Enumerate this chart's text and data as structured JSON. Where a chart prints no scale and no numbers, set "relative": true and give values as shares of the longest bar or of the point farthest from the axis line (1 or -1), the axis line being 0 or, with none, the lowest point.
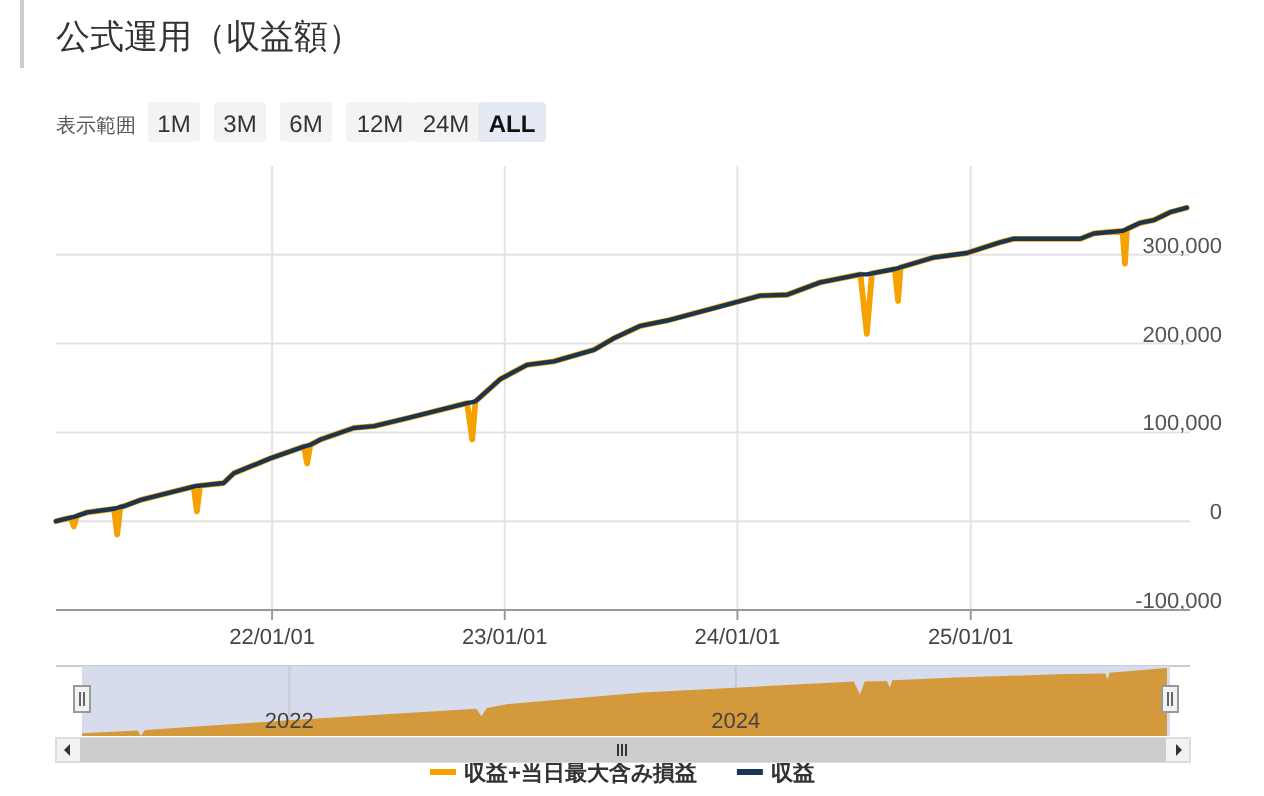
{
  "chart_data": [
    {
      "type": "line",
      "title": "公式運用（収益額）",
      "annotations": [
        "表示範囲",
        "1M",
        "3M",
        "6M",
        "12M",
        "24M",
        "ALL"
      ],
      "x": [
        "2021-01-27",
        "2021-02-19",
        "2021-02-24",
        "2021-03-01",
        "2021-03-17",
        "2021-04-28",
        "2021-05-03",
        "2021-05-08",
        "2021-05-14",
        "2021-06-09",
        "2021-08-31",
        "2021-09-05",
        "2021-09-10",
        "2021-10-17",
        "2021-11-02",
        "2021-12-30",
        "2022-02-20",
        "2022-02-25",
        "2022-03-02",
        "2022-03-18",
        "2022-05-09",
        "2022-06-10",
        "2022-08-01",
        "2022-11-03",
        "2022-11-11",
        "2022-11-16",
        "2022-12-25",
        "2023-02-05",
        "2023-03-19",
        "2023-05-21",
        "2023-06-21",
        "2023-08-02",
        "2023-09-13",
        "2023-12-26",
        "2024-02-06",
        "2024-03-19",
        "2024-05-10",
        "2024-07-12",
        "2024-07-22",
        "2024-07-30",
        "2024-09-04",
        "2024-09-09",
        "2024-09-13",
        "2024-11-04",
        "2024-12-26",
        "2025-02-16",
        "2025-03-09",
        "2025-06-22",
        "2025-07-13",
        "2025-08-27",
        "2025-08-31",
        "2025-09-03",
        "2025-09-24",
        "2025-10-15",
        "2025-11-10",
        "2025-12-06"
      ],
      "series": [
        {
          "name": "収益+当日最大含み損益",
          "color": "#f5a200",
          "values": [
            0,
            4000,
            -6000,
            6000,
            10000,
            14000,
            -15000,
            16000,
            17000,
            24000,
            39000,
            11000,
            40000,
            43000,
            54000,
            71000,
            84000,
            65000,
            86000,
            92000,
            105000,
            107000,
            116000,
            133000,
            92000,
            135000,
            160000,
            176000,
            180000,
            193000,
            206000,
            220000,
            226000,
            246000,
            254000,
            255000,
            269000,
            278000,
            211000,
            279000,
            284000,
            248000,
            286000,
            297000,
            302000,
            314000,
            318000,
            318000,
            324000,
            327000,
            290000,
            329000,
            336000,
            339000,
            348000,
            353000
          ]
        },
        {
          "name": "収益",
          "color": "#1a3550",
          "values": [
            0,
            4000,
            5000,
            6000,
            10000,
            14000,
            15000,
            16000,
            17000,
            24000,
            39000,
            40000,
            40000,
            43000,
            54000,
            71000,
            84000,
            85000,
            86000,
            92000,
            105000,
            107000,
            116000,
            133000,
            134000,
            135000,
            160000,
            176000,
            180000,
            193000,
            206000,
            220000,
            226000,
            246000,
            254000,
            255000,
            269000,
            278000,
            278000,
            279000,
            284000,
            285000,
            286000,
            297000,
            302000,
            314000,
            318000,
            318000,
            324000,
            327000,
            328000,
            329000,
            336000,
            339000,
            348000,
            353000
          ]
        }
      ],
      "xlim": [
        "2021-01-27",
        "2025-12-11"
      ],
      "xticks": [
        {
          "value": "2022-01-01",
          "label": "22/01/01"
        },
        {
          "value": "2023-01-01",
          "label": "23/01/01"
        },
        {
          "value": "2024-01-01",
          "label": "24/01/01"
        },
        {
          "value": "2025-01-01",
          "label": "25/01/01"
        }
      ],
      "ylim": [
        -100000,
        400000
      ],
      "yticks": [
        {
          "value": -100000,
          "label": "-100,000"
        },
        0,
        {
          "value": 100000,
          "label": "100,000"
        },
        {
          "value": 200000,
          "label": "200,000"
        },
        {
          "value": 300000,
          "label": "300,000"
        }
      ],
      "grid": true,
      "legend": "bottom"
    },
    {
      "type": "area",
      "relative": true,
      "color": "#d4993a",
      "x": [
        "2021-01-27",
        "2021-04-28",
        "2021-05-03",
        "2021-05-10",
        "2021-12-30",
        "2022-11-03",
        "2022-11-11",
        "2022-11-20",
        "2022-12-25",
        "2023-08-02",
        "2024-07-12",
        "2024-07-22",
        "2024-07-30",
        "2024-09-04",
        "2024-09-09",
        "2024-09-13",
        "2024-12-26",
        "2025-06-22",
        "2025-08-27",
        "2025-08-31",
        "2025-09-03",
        "2025-12-06"
      ],
      "values": [
        0.04,
        0.08,
        0,
        0.09,
        0.23,
        0.4,
        0.29,
        0.41,
        0.47,
        0.64,
        0.8,
        0.61,
        0.8,
        0.81,
        0.71,
        0.82,
        0.86,
        0.91,
        0.92,
        0.83,
        0.93,
        1
      ],
      "xlim": [
        "2021-01-27",
        "2025-12-11"
      ],
      "xticks": [
        {
          "value": "2022-01-01",
          "label": "2022"
        },
        {
          "value": "2024-01-01",
          "label": "2024"
        }
      ]
    }
  ]
}
